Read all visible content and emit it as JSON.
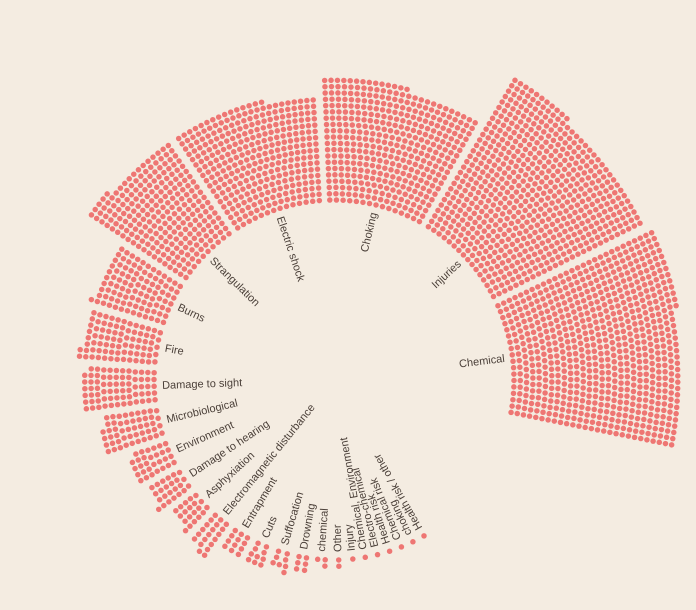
{
  "chart_data": {
    "type": "radial-unit",
    "title": "",
    "unit_color": "#ee7673",
    "background": "#f4ece1",
    "label_color": "#4a3f38",
    "categories": [
      "Chemical",
      "Injuries",
      "Choking",
      "Electric shock",
      "Strangulation",
      "Burns",
      "Fire",
      "Damage to sight",
      "Microbiological",
      "Environment",
      "Damage to hearing",
      "Asphyxiation",
      "Electromagnetic disturbance",
      "Entrapment",
      "Cuts",
      "Suffocation",
      "Drowning",
      "chemical",
      "Other",
      "Injury",
      "Chemical, Environment",
      "Electro-chemical",
      "Health risk",
      "Chemical risk",
      "choking",
      "Health risk / other"
    ],
    "values": [
      720,
      640,
      400,
      330,
      250,
      100,
      80,
      70,
      50,
      30,
      24,
      20,
      20,
      12,
      10,
      8,
      6,
      3,
      2,
      1,
      1,
      1,
      1,
      1,
      1,
      1
    ]
  }
}
